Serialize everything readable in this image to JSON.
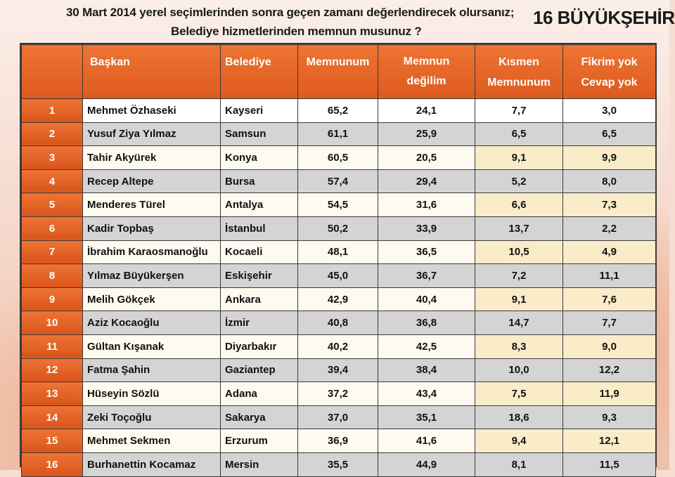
{
  "header": {
    "question_line1": "30 Mart 2014 yerel seçimlerinden sonra geçen  zamanı değerlendirecek olursanız;",
    "question_line2": "Belediye hizmetlerinden memnun musunuz ?",
    "badge": "16 BÜYÜKŞEHİR"
  },
  "table": {
    "columns": {
      "rank": "",
      "mayor": "Başkan",
      "municipality": "Belediye",
      "satisfied": "Memnunum",
      "not_satisfied": "Memnun değilim",
      "partly_line1": "Kısmen",
      "partly_line2": "Memnunum",
      "no_opinion_line1": "Fikrim yok",
      "no_opinion_line2": "Cevap yok"
    },
    "rows": [
      {
        "rank": "1",
        "mayor": "Mehmet Özhaseki",
        "city": "Kayseri",
        "satisfied": "65,2",
        "not_satisfied": "24,1",
        "partly": "7,7",
        "no_opinion": "3,0"
      },
      {
        "rank": "2",
        "mayor": "Yusuf Ziya Yılmaz",
        "city": "Samsun",
        "satisfied": "61,1",
        "not_satisfied": "25,9",
        "partly": "6,5",
        "no_opinion": "6,5"
      },
      {
        "rank": "3",
        "mayor": "Tahir Akyürek",
        "city": "Konya",
        "satisfied": "60,5",
        "not_satisfied": "20,5",
        "partly": "9,1",
        "no_opinion": "9,9"
      },
      {
        "rank": "4",
        "mayor": "Recep Altepe",
        "city": "Bursa",
        "satisfied": "57,4",
        "not_satisfied": "29,4",
        "partly": "5,2",
        "no_opinion": "8,0"
      },
      {
        "rank": "5",
        "mayor": "Menderes Türel",
        "city": "Antalya",
        "satisfied": "54,5",
        "not_satisfied": "31,6",
        "partly": "6,6",
        "no_opinion": "7,3"
      },
      {
        "rank": "6",
        "mayor": "Kadir Topbaş",
        "city": "İstanbul",
        "satisfied": "50,2",
        "not_satisfied": "33,9",
        "partly": "13,7",
        "no_opinion": "2,2"
      },
      {
        "rank": "7",
        "mayor": "İbrahim Karaosmanoğlu",
        "city": "Kocaeli",
        "satisfied": "48,1",
        "not_satisfied": "36,5",
        "partly": "10,5",
        "no_opinion": "4,9"
      },
      {
        "rank": "8",
        "mayor": "Yılmaz Büyükerşen",
        "city": "Eskişehir",
        "satisfied": "45,0",
        "not_satisfied": "36,7",
        "partly": "7,2",
        "no_opinion": "11,1"
      },
      {
        "rank": "9",
        "mayor": "Melih Gökçek",
        "city": "Ankara",
        "satisfied": "42,9",
        "not_satisfied": "40,4",
        "partly": "9,1",
        "no_opinion": "7,6"
      },
      {
        "rank": "10",
        "mayor": "Aziz Kocaoğlu",
        "city": "İzmir",
        "satisfied": "40,8",
        "not_satisfied": "36,8",
        "partly": "14,7",
        "no_opinion": "7,7"
      },
      {
        "rank": "11",
        "mayor": "Gültan Kışanak",
        "city": "Diyarbakır",
        "satisfied": "40,2",
        "not_satisfied": "42,5",
        "partly": "8,3",
        "no_opinion": "9,0"
      },
      {
        "rank": "12",
        "mayor": "Fatma Şahin",
        "city": "Gaziantep",
        "satisfied": "39,4",
        "not_satisfied": "38,4",
        "partly": "10,0",
        "no_opinion": "12,2"
      },
      {
        "rank": "13",
        "mayor": "Hüseyin Sözlü",
        "city": "Adana",
        "satisfied": "37,2",
        "not_satisfied": "43,4",
        "partly": "7,5",
        "no_opinion": "11,9"
      },
      {
        "rank": "14",
        "mayor": "Zeki Toçoğlu",
        "city": "Sakarya",
        "satisfied": "37,0",
        "not_satisfied": "35,1",
        "partly": "18,6",
        "no_opinion": "9,3"
      },
      {
        "rank": "15",
        "mayor": "Mehmet Sekmen",
        "city": "Erzurum",
        "satisfied": "36,9",
        "not_satisfied": "41,6",
        "partly": "9,4",
        "no_opinion": "12,1"
      },
      {
        "rank": "16",
        "mayor": "Burhanettin Kocamaz",
        "city": "Mersin",
        "satisfied": "35,5",
        "not_satisfied": "44,9",
        "partly": "8,1",
        "no_opinion": "11,5"
      }
    ]
  },
  "colors": {
    "accent_orange": "#e86a2b",
    "row_light": "#fffaf0",
    "row_cream": "#fbecc9",
    "row_gray": "#d4d4d4"
  }
}
